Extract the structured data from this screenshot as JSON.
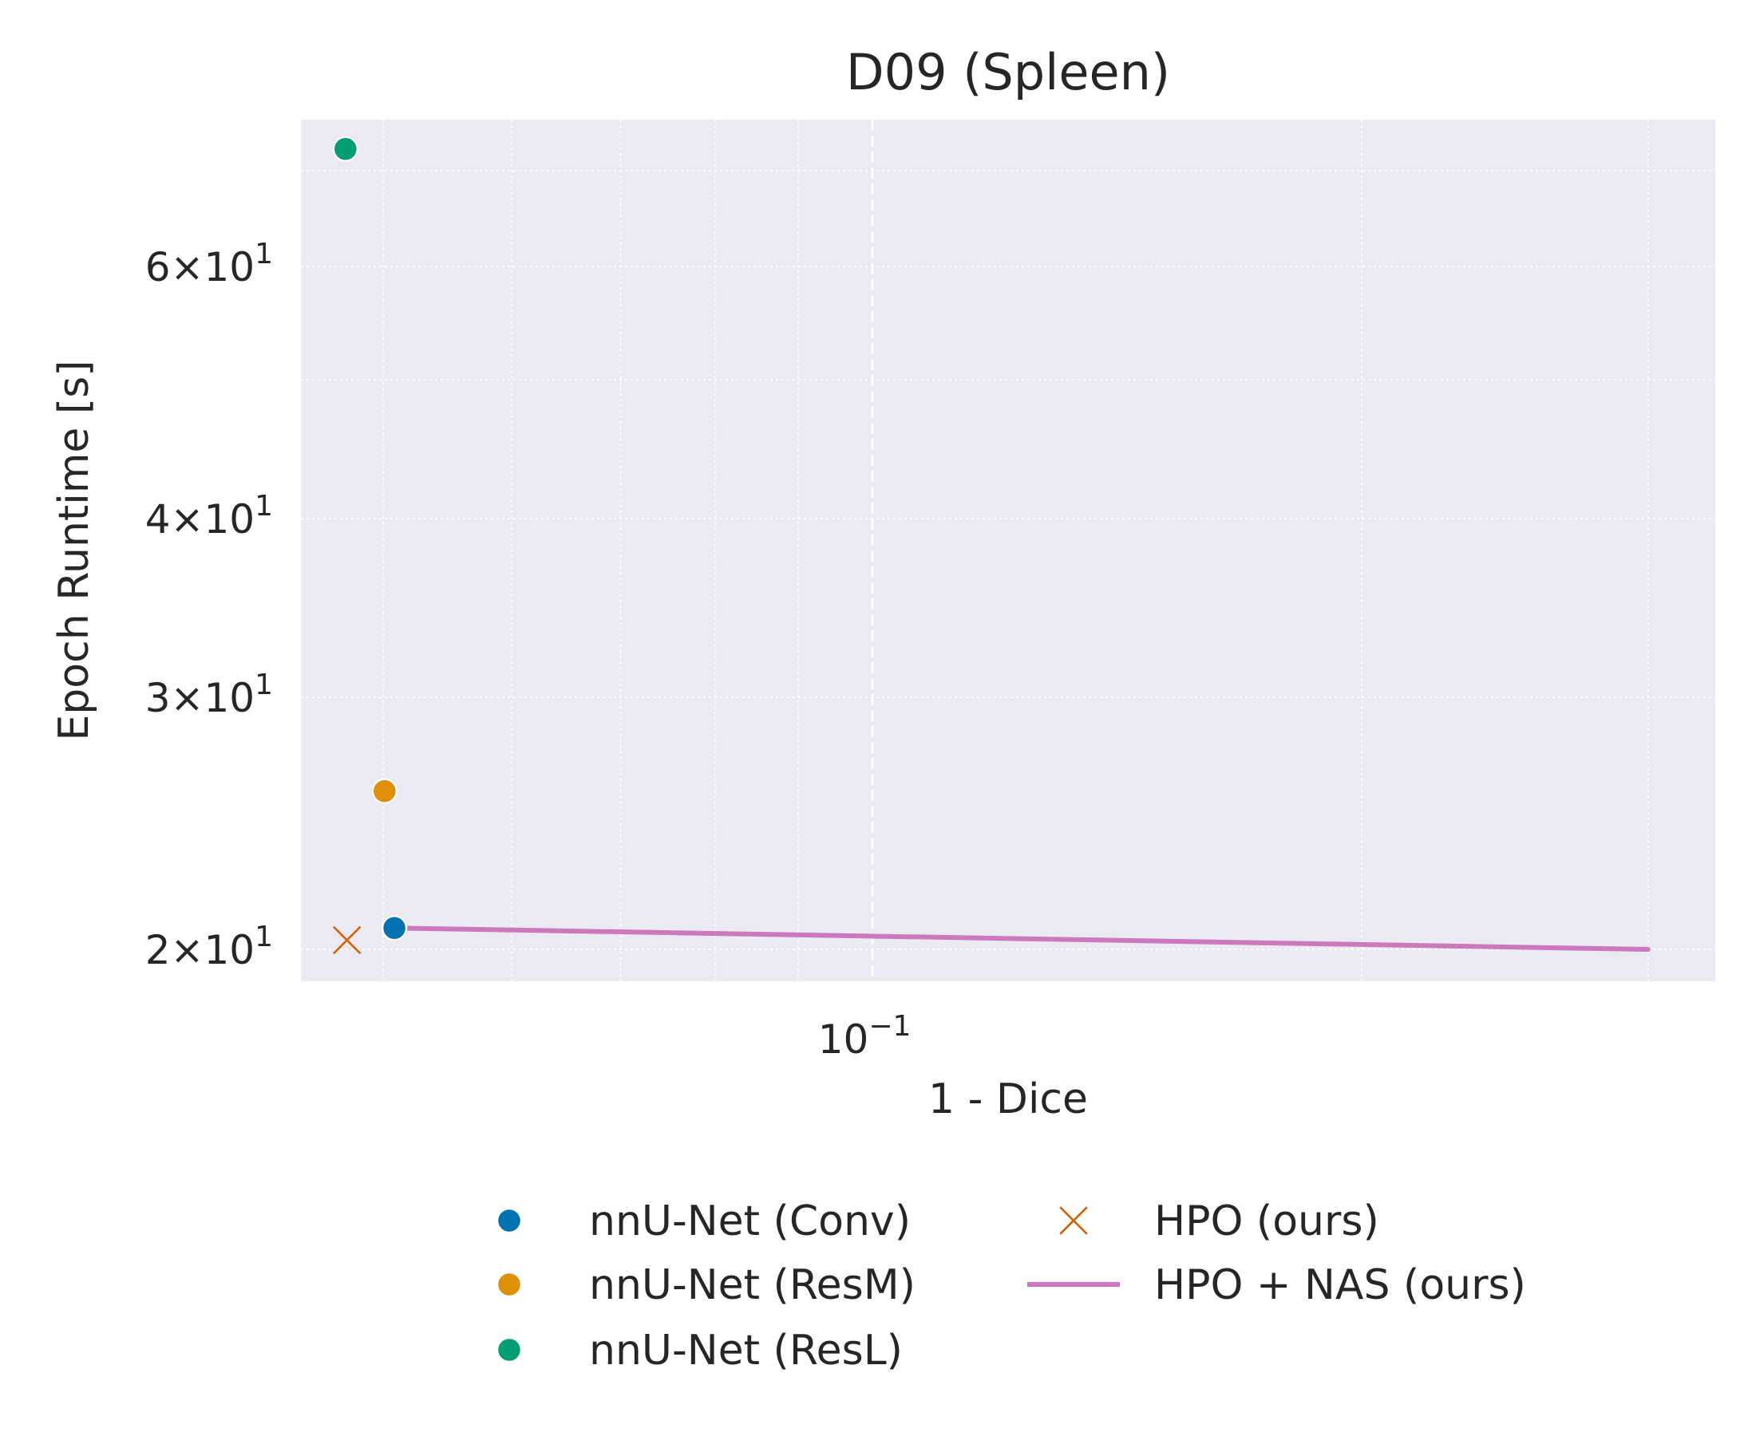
{
  "chart_data": {
    "type": "scatter",
    "title": "D09 (Spleen)",
    "xlabel": "1 - Dice",
    "ylabel": "Epoch Runtime [s]",
    "xscale": "log",
    "yscale": "log",
    "xlim": [
      0.0445,
      0.33
    ],
    "ylim": [
      19.0,
      76.0
    ],
    "x_major_ticks": [
      {
        "value": 0.1,
        "base": "10",
        "exp": "−1"
      }
    ],
    "y_major_ticks": [
      {
        "value": 20,
        "mant": "2",
        "base": "10",
        "exp": "1"
      },
      {
        "value": 30,
        "mant": "3",
        "base": "10",
        "exp": "1"
      },
      {
        "value": 40,
        "mant": "4",
        "base": "10",
        "exp": "1"
      },
      {
        "value": 60,
        "mant": "6",
        "base": "10",
        "exp": "1"
      }
    ],
    "x_minor_ticks": [
      0.05,
      0.06,
      0.07,
      0.08,
      0.09,
      0.2,
      0.3
    ],
    "y_minor_ticks": [
      50,
      70
    ],
    "grid": true,
    "background": "#eaeaf2",
    "legend_position": "below",
    "series": [
      {
        "name": "nnU-Net (Conv)",
        "kind": "scatter",
        "marker": "circle",
        "color": "#0173b2",
        "points": [
          {
            "x": 0.0508,
            "y": 20.7
          }
        ]
      },
      {
        "name": "nnU-Net (ResM)",
        "kind": "scatter",
        "marker": "circle",
        "color": "#de8f05",
        "points": [
          {
            "x": 0.0501,
            "y": 25.8
          }
        ]
      },
      {
        "name": "nnU-Net (ResL)",
        "kind": "scatter",
        "marker": "circle",
        "color": "#029e73",
        "points": [
          {
            "x": 0.0474,
            "y": 72.5
          }
        ]
      },
      {
        "name": "HPO (ours)",
        "kind": "scatter",
        "marker": "x",
        "color": "#d55e00",
        "points": [
          {
            "x": 0.0475,
            "y": 20.3
          }
        ]
      },
      {
        "name": "HPO + NAS (ours)",
        "kind": "line",
        "color": "#cc78bc",
        "points": [
          {
            "x": 0.0508,
            "y": 20.7
          },
          {
            "x": 0.3,
            "y": 20.0
          }
        ]
      }
    ]
  }
}
